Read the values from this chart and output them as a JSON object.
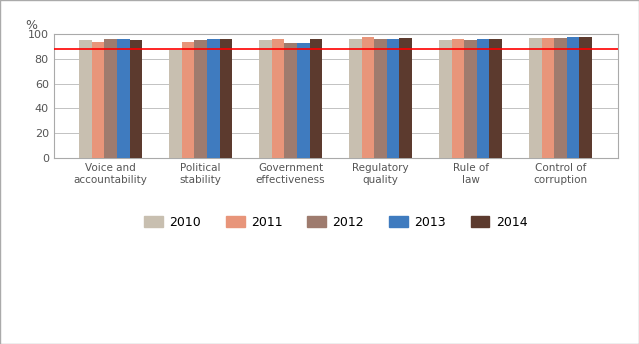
{
  "categories": [
    "Voice and\naccountability",
    "Political\nstability",
    "Government\neffectiveness",
    "Regulatory\nquality",
    "Rule of\nlaw",
    "Control of\ncorruption"
  ],
  "years": [
    "2010",
    "2011",
    "2012",
    "2013",
    "2014"
  ],
  "values": {
    "Voice and\naccountability": [
      95,
      94,
      96,
      96,
      95
    ],
    "Political\nstability": [
      87,
      94,
      95,
      96,
      96
    ],
    "Government\neffectiveness": [
      95,
      96,
      93,
      93,
      96
    ],
    "Regulatory\nquality": [
      96,
      98,
      96,
      96,
      97
    ],
    "Rule of\nlaw": [
      95,
      96,
      95,
      96,
      96
    ],
    "Control of\ncorruption": [
      97,
      97,
      97,
      98,
      98
    ]
  },
  "colors": [
    "#c8bfb0",
    "#e8957a",
    "#9e7b6e",
    "#3f7bbf",
    "#5c3a2e"
  ],
  "ref_line": 88,
  "ylim": [
    0,
    100
  ],
  "yticks": [
    0,
    20,
    40,
    60,
    80,
    100
  ],
  "ylabel": "%",
  "background_color": "#ffffff",
  "grid_color": "#aaaaaa",
  "border_color": "#aaaaaa"
}
